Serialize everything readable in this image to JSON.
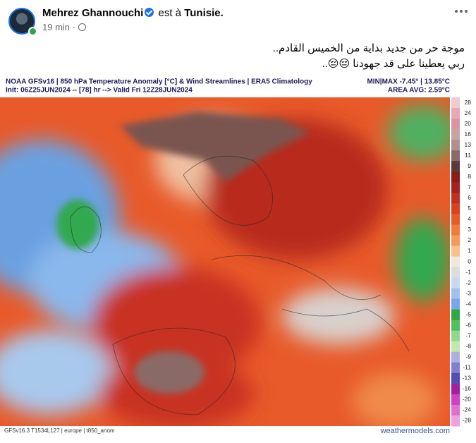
{
  "header": {
    "author": "Mehrez Ghannouchi",
    "action": "est à",
    "location": "Tunisie.",
    "time": "19 min",
    "separator": "·"
  },
  "post": {
    "lines": [
      "موجة حر من جديد بداية من الخميس القادم..",
      "ربي يعطينا على قد جهودنا 😔😔.."
    ]
  },
  "map": {
    "title": "NOAA GFSv16 | 850 hPa Temperature Anomaly [°C] & Wind Streamlines | ERA5 Climatology",
    "init": "Init: 06Z25JUN2024 -- [78] hr --> Valid Fri 12Z28JUN2024",
    "minmax": "MIN|MAX -7.45° | 13.85°C",
    "area_avg": "AREA AVG: 2.59°C",
    "colorbar": [
      28,
      24,
      20,
      16,
      13,
      11,
      9,
      8,
      7,
      6,
      5,
      4,
      3,
      2,
      1,
      0,
      -1,
      -2,
      -3,
      -4,
      -5,
      -6,
      -7,
      -8,
      -9,
      -11,
      -13,
      -16,
      -20,
      -24,
      -28
    ],
    "footer_left": "GFSv16.3 T1534L127 | europe | t850_anom",
    "footer_right": "weathermodels.com"
  }
}
